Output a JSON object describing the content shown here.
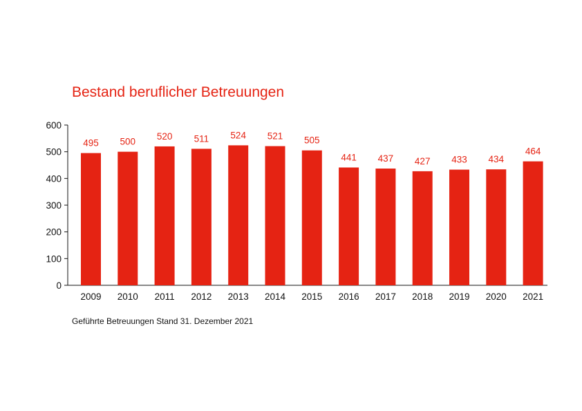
{
  "chart_data": {
    "type": "bar",
    "title": "Bestand beruflicher Betreuungen",
    "note": "Geführte Betreuungen Stand 31. Dezember 2021",
    "categories": [
      "2009",
      "2010",
      "2011",
      "2012",
      "2013",
      "2014",
      "2015",
      "2016",
      "2017",
      "2018",
      "2019",
      "2020",
      "2021"
    ],
    "values": [
      495,
      500,
      520,
      511,
      524,
      521,
      505,
      441,
      437,
      427,
      433,
      434,
      464
    ],
    "ylim": [
      0,
      600
    ],
    "yticks": [
      0,
      100,
      200,
      300,
      400,
      500,
      600
    ],
    "xlabel": "",
    "ylabel": "",
    "grid": false,
    "bar_color": "#e52313",
    "label_color": "#e52313"
  }
}
